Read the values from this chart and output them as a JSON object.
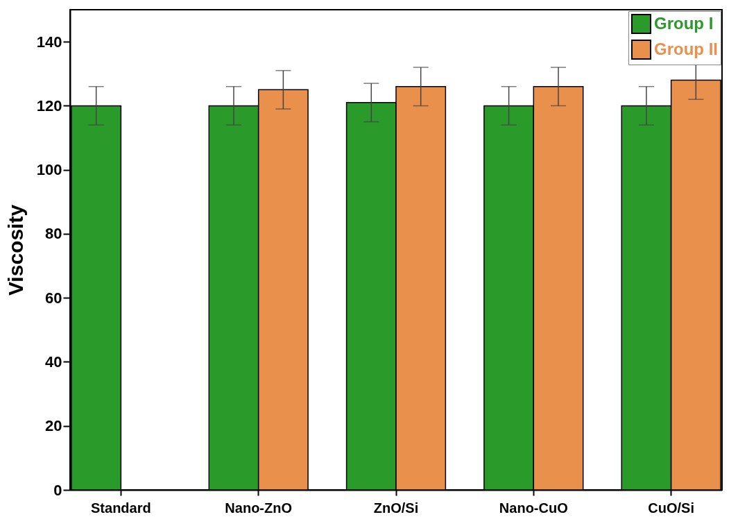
{
  "chart_data": {
    "type": "bar",
    "ylabel": "Viscosity",
    "categories": [
      "Standard",
      "Nano-ZnO",
      "ZnO/Si",
      "Nano-CuO",
      "CuO/Si"
    ],
    "series": [
      {
        "name": "Group I",
        "color": "#2a9a2a",
        "values": [
          120,
          120,
          121,
          120,
          120
        ],
        "errors": [
          6,
          6,
          6,
          6,
          6
        ]
      },
      {
        "name": "Group II",
        "color": "#e8904c",
        "values": [
          null,
          125,
          126,
          126,
          128
        ],
        "errors": [
          null,
          6,
          6,
          6,
          6
        ]
      }
    ],
    "ylim": [
      0,
      150
    ],
    "yticks": [
      0,
      20,
      40,
      60,
      80,
      100,
      120,
      140
    ],
    "grid": false,
    "legend": "top right"
  }
}
